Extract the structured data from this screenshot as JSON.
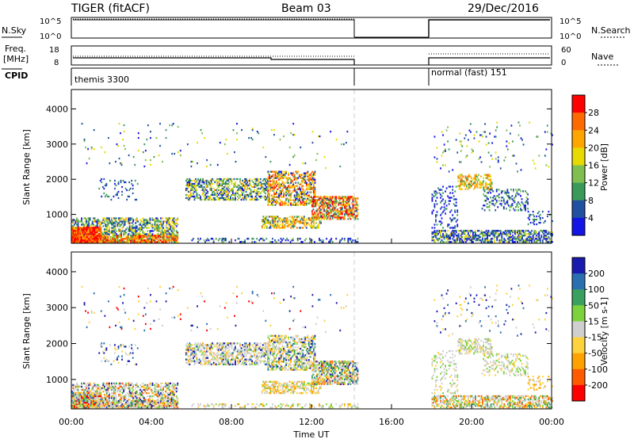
{
  "header": {
    "title": "TIGER (fitACF)",
    "beam": "Beam 03",
    "date": "29/Dec/2016"
  },
  "top_panels": {
    "nsky_label": "N.Sky",
    "nsearch_label": "N.Search",
    "nsky_ticks": [
      "10^5",
      "10^0"
    ],
    "nsearch_ticks": [
      "10^5",
      "10^0"
    ],
    "freq_label": "Freq.",
    "freq_unit": "[MHz]",
    "freq_ticks": [
      "18",
      "8"
    ],
    "nave_label": "Nave",
    "nave_ticks": [
      "60",
      "0"
    ],
    "cpid_label": "CPID",
    "cpid_segments": [
      {
        "label": "themis 3300",
        "start": 0.0,
        "end": 14.3
      },
      {
        "label": "normal (fast) 151",
        "start": 18.0,
        "end": 24.0
      }
    ]
  },
  "chart_data": [
    {
      "type": "heatmap",
      "name": "power",
      "xlabel": "",
      "ylabel": "Slant Range [km]",
      "xlim": [
        0,
        24
      ],
      "ylim": [
        180,
        4550
      ],
      "y_ticks": [
        1000,
        2000,
        3000,
        4000
      ],
      "colorbar_label": "Power [dB]",
      "colorbar_ticks": [
        "28",
        "24",
        "20",
        "16",
        "12",
        "8",
        "4"
      ],
      "colors": [
        "#ff0000",
        "#ff6a00",
        "#ffa500",
        "#e8d900",
        "#7fbf4f",
        "#3a9a5a",
        "#2050a0",
        "#1414e6"
      ],
      "data_gap": [
        14.3,
        18.0
      ],
      "regions": [
        {
          "t": [
            0.0,
            5.3
          ],
          "r": [
            200,
            900
          ],
          "level": "mixed-high"
        },
        {
          "t": [
            0.0,
            1.5
          ],
          "r": [
            200,
            600
          ],
          "level": "high"
        },
        {
          "t": [
            5.7,
            12.0
          ],
          "r": [
            1300,
            2200
          ],
          "level": "mixed"
        },
        {
          "t": [
            12.0,
            14.3
          ],
          "r": [
            600,
            1500
          ],
          "level": "mixed-high"
        },
        {
          "t": [
            18.0,
            24.0
          ],
          "r": [
            200,
            600
          ],
          "level": "low"
        },
        {
          "t": [
            19.5,
            22.5
          ],
          "r": [
            1000,
            2100
          ],
          "level": "mixed"
        }
      ]
    },
    {
      "type": "heatmap",
      "name": "velocity",
      "xlabel": "Time UT",
      "ylabel": "Slant Range [km]",
      "xlim": [
        0,
        24
      ],
      "ylim": [
        180,
        4550
      ],
      "x_ticks": [
        "00:00",
        "04:00",
        "08:00",
        "12:00",
        "16:00",
        "20:00",
        "00:00"
      ],
      "y_ticks": [
        1000,
        2000,
        3000,
        4000
      ],
      "colorbar_label": "Velocity [m s-1]",
      "colorbar_ticks": [
        "200",
        "100",
        "50",
        "15",
        "-15",
        "-50",
        "-100",
        "-200"
      ],
      "colors": [
        "#1a1ab0",
        "#2a6fb0",
        "#3aa060",
        "#7cd23c",
        "#cfcfcf",
        "#ffd23c",
        "#ffa200",
        "#ff5a00",
        "#ff0000"
      ],
      "data_gap": [
        14.3,
        18.0
      ]
    }
  ]
}
